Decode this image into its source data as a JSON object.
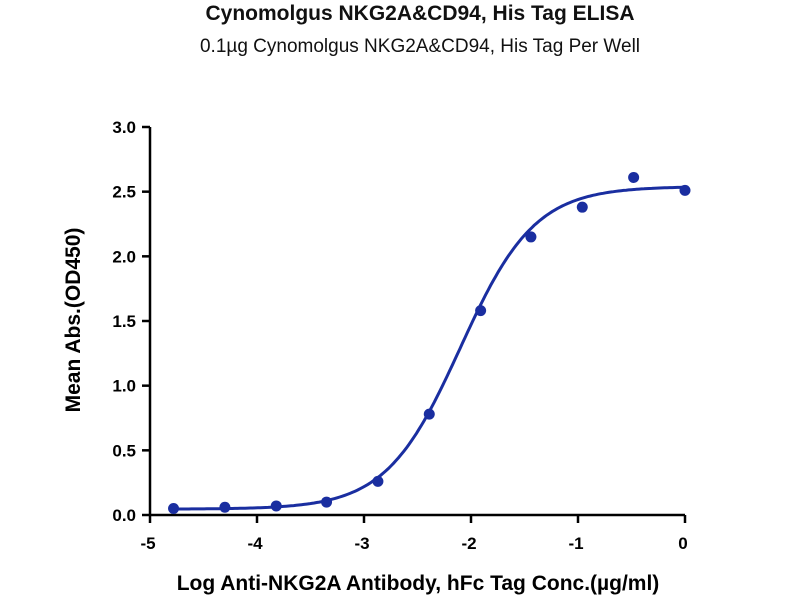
{
  "chart_data": {
    "type": "scatter",
    "title": "Cynomolgus NKG2A&CD94, His Tag ELISA",
    "subtitle": "0.1µg Cynomolgus NKG2A&CD94, His Tag Per Well",
    "xlabel": "Log Anti-NKG2A Antibody, hFc Tag Conc.(µg/ml)",
    "ylabel": "Mean Abs.(OD450)",
    "xlim": [
      -5,
      0
    ],
    "ylim": [
      0,
      3.0
    ],
    "xticks": [
      "-5",
      "-4",
      "-3",
      "-2",
      "-1",
      "0"
    ],
    "yticks": [
      "0.0",
      "0.5",
      "1.0",
      "1.5",
      "2.0",
      "2.5",
      "3.0"
    ],
    "grid": false,
    "color": "#1a2ea0",
    "series": [
      {
        "x": [
          -4.78,
          -4.3,
          -3.82,
          -3.35,
          -2.87,
          -2.39,
          -1.91,
          -1.44,
          -0.96,
          -0.48,
          0.0
        ],
        "values": [
          0.05,
          0.06,
          0.07,
          0.1,
          0.26,
          0.78,
          1.58,
          2.15,
          2.38,
          2.61,
          2.51
        ],
        "fit": {
          "model": "4PL",
          "bottom": 0.045,
          "top": 2.54,
          "logEC50": -2.1,
          "hill": 1.25
        }
      }
    ]
  }
}
